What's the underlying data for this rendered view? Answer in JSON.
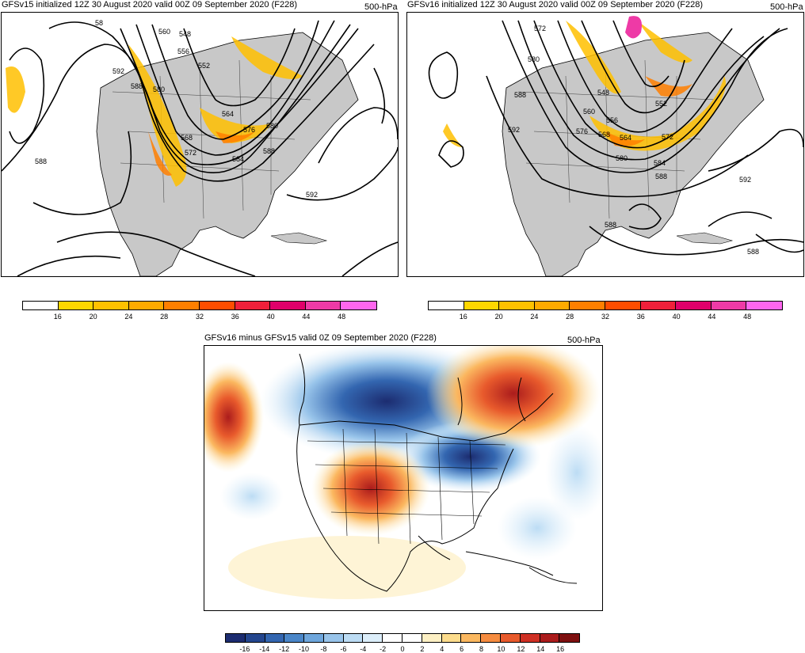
{
  "panels": {
    "left": {
      "title": "GFSv15 initialized 12Z 30 August 2020 valid 00Z 09 September 2020 (F228)",
      "level": "500-hPa"
    },
    "right": {
      "title": "GFSv16 initialized 12Z 30 August 2020 valid 00Z 09 September 2020 (F228)",
      "level": "500-hPa"
    },
    "diff": {
      "title": "GFSv16 minus GFSv15 valid 0Z 09 September 2020 (F228)",
      "level": "500-hPa"
    }
  },
  "contour_labels": {
    "left": [
      "58",
      "560",
      "548",
      "556",
      "552",
      "592",
      "588",
      "580",
      "564",
      "576",
      "580",
      "568",
      "572",
      "584",
      "588",
      "588",
      "592"
    ],
    "right": [
      "572",
      "580",
      "548",
      "588",
      "560",
      "552",
      "592",
      "576",
      "568",
      "556",
      "564",
      "572",
      "580",
      "584",
      "592",
      "588",
      "588",
      "588"
    ]
  },
  "wind_colorbar": {
    "labels": [
      "16",
      "20",
      "24",
      "28",
      "32",
      "36",
      "40",
      "44",
      "48"
    ],
    "colors": [
      "#ffffff",
      "#ffd700",
      "#ffc100",
      "#ffaa00",
      "#ff7f00",
      "#ff4d00",
      "#f0203a",
      "#e0006a",
      "#ee3aa6",
      "#ff66ee"
    ]
  },
  "diff_colorbar": {
    "labels": [
      "-16",
      "-14",
      "-12",
      "-10",
      "-8",
      "-6",
      "-4",
      "-2",
      "0",
      "2",
      "4",
      "6",
      "8",
      "10",
      "12",
      "14",
      "16"
    ],
    "colors": [
      "#1c2c70",
      "#24468e",
      "#3366b0",
      "#4a86c8",
      "#6ea6dc",
      "#98c4ea",
      "#bcdcf4",
      "#dceefa",
      "#ffffff",
      "#ffffff",
      "#fdf0c4",
      "#fcdc8c",
      "#fbb860",
      "#f68c40",
      "#e85a2c",
      "#cf3024",
      "#ab1c1c",
      "#7e1010"
    ]
  }
}
